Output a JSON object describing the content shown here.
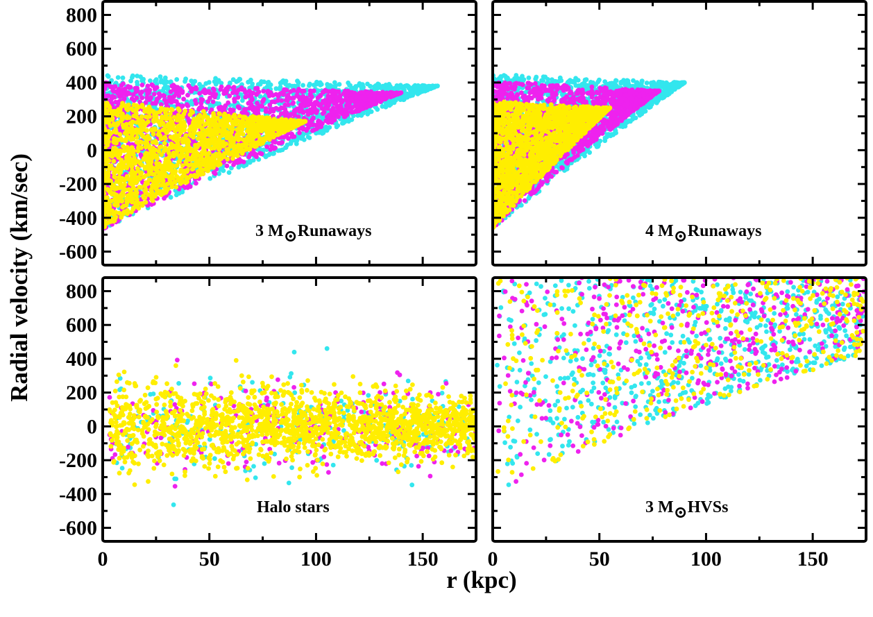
{
  "figure": {
    "ylabel": "Radial velocity (km/sec)",
    "xlabel": "r (kpc)"
  },
  "colors": {
    "cyan": "#33e6ee",
    "magenta": "#ee22ee",
    "yellow": "#ffee00",
    "axes": "#000000"
  },
  "chart_data": [
    {
      "type": "scatter",
      "panel": "top-left",
      "label_prefix": "3 M",
      "label_symbol": "⊙",
      "label_suffix": "Runaways",
      "xlim": [
        0,
        175
      ],
      "ylim": [
        -680,
        880
      ],
      "xticks": [
        0,
        50,
        100,
        150
      ],
      "yticks": [
        -600,
        -400,
        -200,
        0,
        200,
        400,
        600,
        800
      ],
      "show_y_ticklabels": true,
      "show_x_ticklabels": false,
      "series": [
        {
          "color": "cyan",
          "kind": "runaway",
          "rmax": 157,
          "vtop": 450,
          "vtop_end": 380
        },
        {
          "color": "magenta",
          "kind": "runaway",
          "rmax": 140,
          "vtop": 400,
          "vtop_end": 340
        },
        {
          "color": "yellow",
          "kind": "runaway",
          "rmax": 95,
          "vtop": 290,
          "vtop_end": 170
        }
      ]
    },
    {
      "type": "scatter",
      "panel": "top-right",
      "label_prefix": "4 M",
      "label_symbol": "⊙",
      "label_suffix": "Runaways",
      "xlim": [
        0,
        175
      ],
      "ylim": [
        -680,
        880
      ],
      "xticks": [
        0,
        50,
        100,
        150
      ],
      "yticks": [
        -600,
        -400,
        -200,
        0,
        200,
        400,
        600,
        800
      ],
      "show_y_ticklabels": false,
      "show_x_ticklabels": false,
      "series": [
        {
          "color": "cyan",
          "kind": "runaway",
          "rmax": 90,
          "vtop": 450,
          "vtop_end": 400
        },
        {
          "color": "magenta",
          "kind": "runaway",
          "rmax": 78,
          "vtop": 410,
          "vtop_end": 350
        },
        {
          "color": "yellow",
          "kind": "runaway",
          "rmax": 55,
          "vtop": 290,
          "vtop_end": 250
        }
      ]
    },
    {
      "type": "scatter",
      "panel": "bottom-left",
      "label_prefix": "",
      "label_symbol": "",
      "label_suffix": "Halo stars",
      "xlim": [
        0,
        175
      ],
      "ylim": [
        -680,
        880
      ],
      "xticks": [
        0,
        50,
        100,
        150
      ],
      "yticks": [
        -600,
        -400,
        -200,
        0,
        200,
        400,
        600,
        800
      ],
      "show_y_ticklabels": true,
      "show_x_ticklabels": true,
      "series": [
        {
          "color": "cyan",
          "kind": "halo"
        },
        {
          "color": "magenta",
          "kind": "halo"
        },
        {
          "color": "yellow",
          "kind": "halo"
        }
      ]
    },
    {
      "type": "scatter",
      "panel": "bottom-right",
      "label_prefix": "3 M",
      "label_symbol": "⊙",
      "label_suffix": "HVSs",
      "xlim": [
        0,
        175
      ],
      "ylim": [
        -680,
        880
      ],
      "xticks": [
        0,
        50,
        100,
        150
      ],
      "yticks": [
        -600,
        -400,
        -200,
        0,
        200,
        400,
        600,
        800
      ],
      "show_y_ticklabels": false,
      "show_x_ticklabels": true,
      "series": [
        {
          "color": "cyan",
          "kind": "hvs"
        },
        {
          "color": "magenta",
          "kind": "hvs"
        },
        {
          "color": "yellow",
          "kind": "hvs"
        }
      ]
    }
  ]
}
